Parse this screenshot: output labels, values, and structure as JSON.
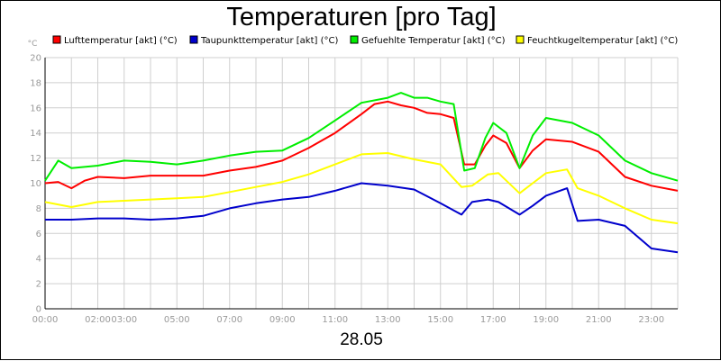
{
  "chart_data": {
    "type": "line",
    "title": "Temperaturen [pro Tag]",
    "date_label": "28.05",
    "y_unit": "°C",
    "ylim": [
      0,
      20
    ],
    "y_ticks": [
      0,
      2,
      4,
      6,
      8,
      10,
      12,
      14,
      16,
      18,
      20
    ],
    "xlim": [
      0,
      24
    ],
    "x_ticks": [
      {
        "value": 0,
        "label": "00:00"
      },
      {
        "value": 2,
        "label": "02:00"
      },
      {
        "value": 3,
        "label": "03:00"
      },
      {
        "value": 5,
        "label": "05:00"
      },
      {
        "value": 7,
        "label": "07:00"
      },
      {
        "value": 9,
        "label": "09:00"
      },
      {
        "value": 11,
        "label": "11:00"
      },
      {
        "value": 13,
        "label": "13:00"
      },
      {
        "value": 15,
        "label": "15:00"
      },
      {
        "value": 17,
        "label": "17:00"
      },
      {
        "value": 19,
        "label": "19:00"
      },
      {
        "value": 21,
        "label": "21:00"
      },
      {
        "value": 23,
        "label": "23:00"
      }
    ],
    "grid": true,
    "legend_position": "top",
    "series": [
      {
        "name": "Lufttemperatur [akt] (°C)",
        "color": "#ff0000",
        "points": [
          [
            0,
            10.0
          ],
          [
            0.5,
            10.1
          ],
          [
            1,
            9.6
          ],
          [
            1.5,
            10.2
          ],
          [
            2,
            10.5
          ],
          [
            3,
            10.4
          ],
          [
            4,
            10.6
          ],
          [
            5,
            10.6
          ],
          [
            6,
            10.6
          ],
          [
            7,
            11.0
          ],
          [
            8,
            11.3
          ],
          [
            9,
            11.8
          ],
          [
            10,
            12.8
          ],
          [
            11,
            14.0
          ],
          [
            12,
            15.5
          ],
          [
            12.5,
            16.3
          ],
          [
            13,
            16.5
          ],
          [
            13.5,
            16.2
          ],
          [
            14,
            16.0
          ],
          [
            14.5,
            15.6
          ],
          [
            15,
            15.5
          ],
          [
            15.5,
            15.2
          ],
          [
            15.9,
            11.5
          ],
          [
            16.3,
            11.5
          ],
          [
            16.7,
            13.0
          ],
          [
            17,
            13.8
          ],
          [
            17.5,
            13.2
          ],
          [
            18,
            11.2
          ],
          [
            18.5,
            12.6
          ],
          [
            19,
            13.5
          ],
          [
            20,
            13.3
          ],
          [
            21,
            12.5
          ],
          [
            22,
            10.5
          ],
          [
            23,
            9.8
          ],
          [
            24,
            9.4
          ]
        ]
      },
      {
        "name": "Taupunkttemperatur [akt] (°C)",
        "color": "#0000cc",
        "points": [
          [
            0,
            7.1
          ],
          [
            1,
            7.1
          ],
          [
            2,
            7.2
          ],
          [
            3,
            7.2
          ],
          [
            4,
            7.1
          ],
          [
            5,
            7.2
          ],
          [
            6,
            7.4
          ],
          [
            7,
            8.0
          ],
          [
            8,
            8.4
          ],
          [
            9,
            8.7
          ],
          [
            10,
            8.9
          ],
          [
            11,
            9.4
          ],
          [
            12,
            10.0
          ],
          [
            13,
            9.8
          ],
          [
            14,
            9.5
          ],
          [
            15,
            8.4
          ],
          [
            15.8,
            7.5
          ],
          [
            16.2,
            8.5
          ],
          [
            16.8,
            8.7
          ],
          [
            17.2,
            8.5
          ],
          [
            18,
            7.5
          ],
          [
            18.5,
            8.2
          ],
          [
            19,
            9.0
          ],
          [
            19.8,
            9.6
          ],
          [
            20.2,
            7.0
          ],
          [
            21,
            7.1
          ],
          [
            22,
            6.6
          ],
          [
            23,
            4.8
          ],
          [
            24,
            4.5
          ]
        ]
      },
      {
        "name": "Gefuehlte Temperatur [akt] (°C)",
        "color": "#00ee00",
        "points": [
          [
            0,
            10.2
          ],
          [
            0.5,
            11.8
          ],
          [
            1,
            11.2
          ],
          [
            2,
            11.4
          ],
          [
            3,
            11.8
          ],
          [
            4,
            11.7
          ],
          [
            5,
            11.5
          ],
          [
            6,
            11.8
          ],
          [
            7,
            12.2
          ],
          [
            8,
            12.5
          ],
          [
            9,
            12.6
          ],
          [
            10,
            13.6
          ],
          [
            11,
            15.0
          ],
          [
            12,
            16.4
          ],
          [
            13,
            16.8
          ],
          [
            13.5,
            17.2
          ],
          [
            14,
            16.8
          ],
          [
            14.5,
            16.8
          ],
          [
            15,
            16.5
          ],
          [
            15.5,
            16.3
          ],
          [
            15.9,
            11.0
          ],
          [
            16.3,
            11.2
          ],
          [
            16.7,
            13.6
          ],
          [
            17,
            14.8
          ],
          [
            17.5,
            14.0
          ],
          [
            18,
            11.2
          ],
          [
            18.5,
            13.8
          ],
          [
            19,
            15.2
          ],
          [
            20,
            14.8
          ],
          [
            21,
            13.8
          ],
          [
            22,
            11.8
          ],
          [
            23,
            10.8
          ],
          [
            24,
            10.2
          ]
        ]
      },
      {
        "name": "Feuchtkugeltemperatur [akt] (°C)",
        "color": "#ffff00",
        "points": [
          [
            0,
            8.5
          ],
          [
            1,
            8.1
          ],
          [
            2,
            8.5
          ],
          [
            3,
            8.6
          ],
          [
            4,
            8.7
          ],
          [
            5,
            8.8
          ],
          [
            6,
            8.9
          ],
          [
            7,
            9.3
          ],
          [
            8,
            9.7
          ],
          [
            9,
            10.1
          ],
          [
            10,
            10.7
          ],
          [
            11,
            11.5
          ],
          [
            12,
            12.3
          ],
          [
            13,
            12.4
          ],
          [
            14,
            11.9
          ],
          [
            15,
            11.5
          ],
          [
            15.8,
            9.7
          ],
          [
            16.2,
            9.8
          ],
          [
            16.8,
            10.7
          ],
          [
            17.2,
            10.8
          ],
          [
            18,
            9.2
          ],
          [
            18.5,
            10.0
          ],
          [
            19,
            10.8
          ],
          [
            19.8,
            11.1
          ],
          [
            20.2,
            9.6
          ],
          [
            21,
            9.0
          ],
          [
            22,
            8.0
          ],
          [
            23,
            7.1
          ],
          [
            24,
            6.8
          ]
        ]
      }
    ]
  }
}
